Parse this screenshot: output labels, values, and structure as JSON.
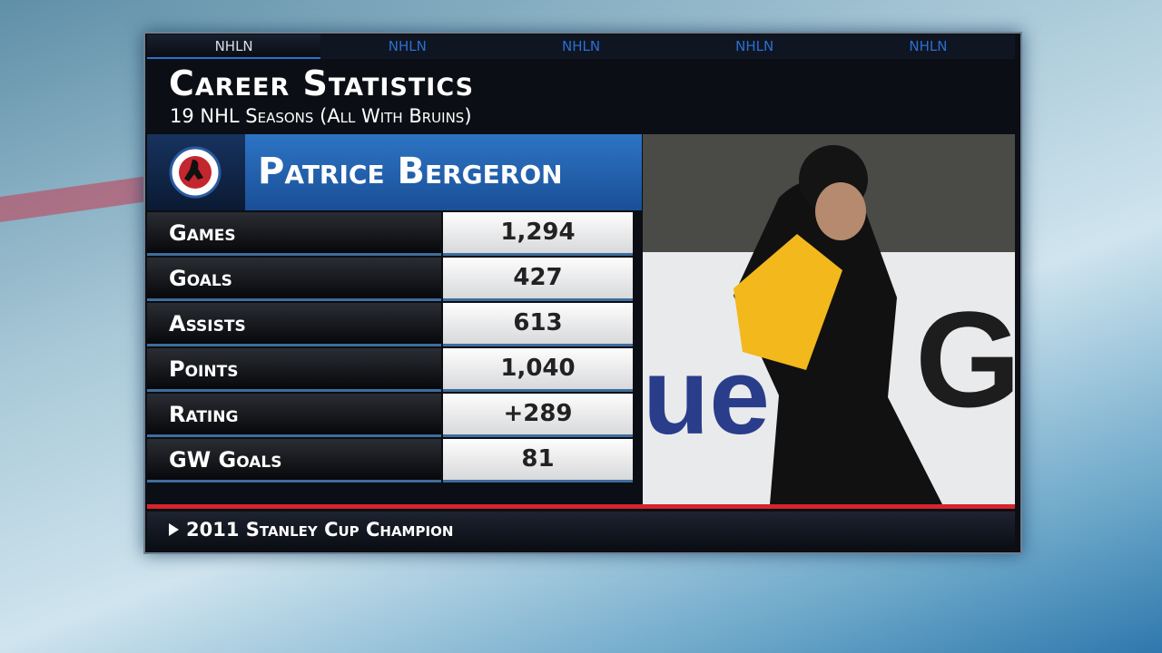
{
  "tabs": [
    "NHLN",
    "NHLN",
    "NHLN",
    "NHLN",
    "NHLN"
  ],
  "header": {
    "title": "Career Statistics",
    "subtitle": "19 NHL Seasons (All With Bruins)"
  },
  "player": {
    "name": "Patrice Bergeron"
  },
  "stats": [
    {
      "label": "Games",
      "value": "1,294"
    },
    {
      "label": "Goals",
      "value": "427"
    },
    {
      "label": "Assists",
      "value": "613"
    },
    {
      "label": "Points",
      "value": "1,040"
    },
    {
      "label": "Rating",
      "value": "+289"
    },
    {
      "label": "GW Goals",
      "value": "81"
    }
  ],
  "footer": {
    "note": "2011 Stanley Cup Champion"
  }
}
